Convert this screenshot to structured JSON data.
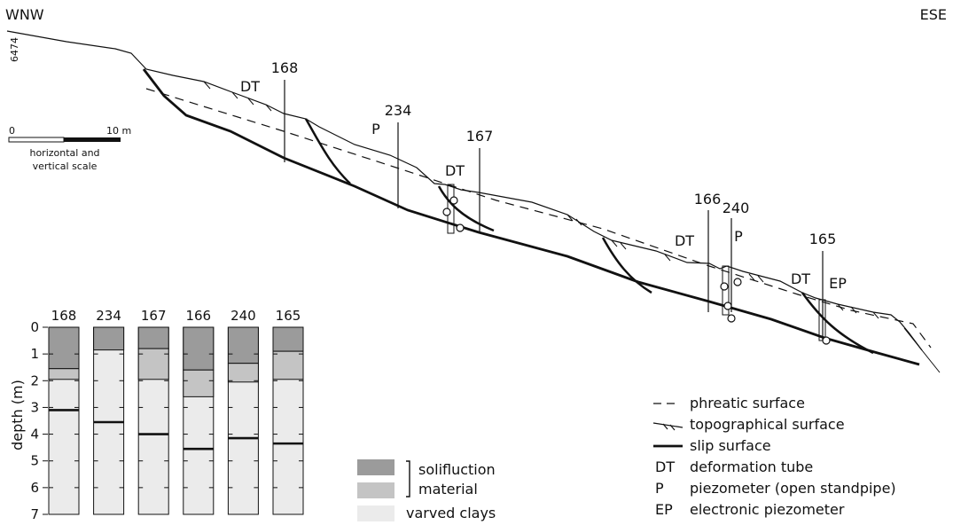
{
  "orientation": {
    "left": "WNW",
    "right": "ESE"
  },
  "figure_number": "6474",
  "scale": {
    "zero": "0",
    "end": "10 m",
    "caption_line1": "horizontal and",
    "caption_line2": "vertical scale"
  },
  "instrument_labels": {
    "b168": "168",
    "dt168": "DT",
    "b234": "234",
    "p234": "P",
    "b167": "167",
    "dt167": "DT",
    "b166": "166",
    "dt166": "DT",
    "b240": "240",
    "p240": "P",
    "b165": "165",
    "dt165": "DT",
    "ep165": "EP"
  },
  "legend": {
    "phreatic": "phreatic surface",
    "topographical": "topographical surface",
    "slip": "slip surface",
    "dt_abbr": "DT",
    "dt_text": "deformation tube",
    "p_abbr": "P",
    "p_text": "piezometer (open standpipe)",
    "ep_abbr": "EP",
    "ep_text": "electronic piezometer"
  },
  "columns_legend": {
    "solifluction": "solifluction",
    "material": "material",
    "varved": "varved clays"
  },
  "colors": {
    "dark": "#9b9b9b",
    "medium": "#c4c4c4",
    "light": "#ebebeb"
  },
  "chart_data": {
    "type": "bar",
    "ylabel": "depth (m)",
    "ylim": [
      0,
      7
    ],
    "ticks": [
      "0",
      "1",
      "2",
      "3",
      "4",
      "5",
      "6",
      "7"
    ],
    "columns": [
      {
        "name": "168",
        "dark": [
          0,
          1.55
        ],
        "medium": [
          1.55,
          1.95
        ],
        "slip": 3.1
      },
      {
        "name": "234",
        "dark": [
          0,
          0.85
        ],
        "medium": null,
        "slip": 3.55
      },
      {
        "name": "167",
        "dark": [
          0,
          0.8
        ],
        "medium": [
          0.8,
          1.95
        ],
        "slip": 4.0
      },
      {
        "name": "166",
        "dark": [
          0,
          1.6
        ],
        "medium": [
          1.6,
          2.6
        ],
        "slip": 4.55
      },
      {
        "name": "240",
        "dark": [
          0,
          1.35
        ],
        "medium": [
          1.35,
          2.05
        ],
        "slip": 4.15
      },
      {
        "name": "165",
        "dark": [
          0,
          0.9
        ],
        "medium": [
          0.9,
          1.95
        ],
        "slip": 4.35
      }
    ]
  }
}
